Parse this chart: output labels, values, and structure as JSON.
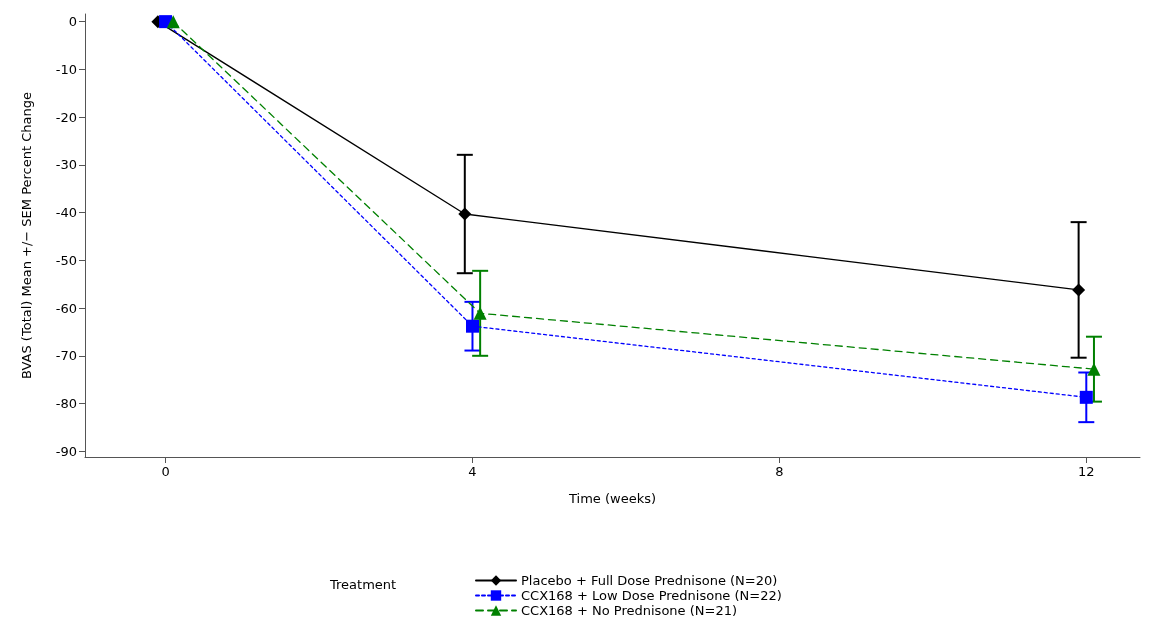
{
  "chart_data": {
    "type": "line",
    "xlabel": "Time (weeks)",
    "ylabel": "BVAS (Total) Mean +/− SEM Percent Change",
    "legend_title": "Treatment",
    "xlim": [
      -1.05,
      12.7
    ],
    "xticks": [
      0,
      4,
      8,
      12
    ],
    "ylim": [
      -91.2,
      1.6
    ],
    "yticks": [
      0,
      -10,
      -20,
      -30,
      -40,
      -50,
      -60,
      -70,
      -80,
      -90
    ],
    "grid": false,
    "legend": "bottom",
    "series": [
      {
        "name": "Placebo + Full Dose Prednisone (N=20)",
        "color": "#000000",
        "marker": "diamond",
        "line_style": "solid",
        "x": [
          -0.1,
          3.9,
          11.9
        ],
        "values": [
          0,
          -40.3,
          -56.2
        ],
        "errors": [
          null,
          12.4,
          14.2
        ]
      },
      {
        "name": "CCX168 + Low Dose Prednisone (N=22)",
        "color": "#0000ff",
        "marker": "square",
        "line_style": "dotted",
        "x": [
          0,
          4,
          12
        ],
        "values": [
          0,
          -63.8,
          -78.7
        ],
        "errors": [
          null,
          5.1,
          5.2
        ]
      },
      {
        "name": "CCX168 + No Prednisone (N=21)",
        "color": "#008000",
        "marker": "triangle",
        "line_style": "dashed",
        "x": [
          0.1,
          4.1,
          12.1
        ],
        "values": [
          0,
          -61.1,
          -72.8
        ],
        "errors": [
          null,
          8.9,
          6.8
        ]
      }
    ]
  }
}
